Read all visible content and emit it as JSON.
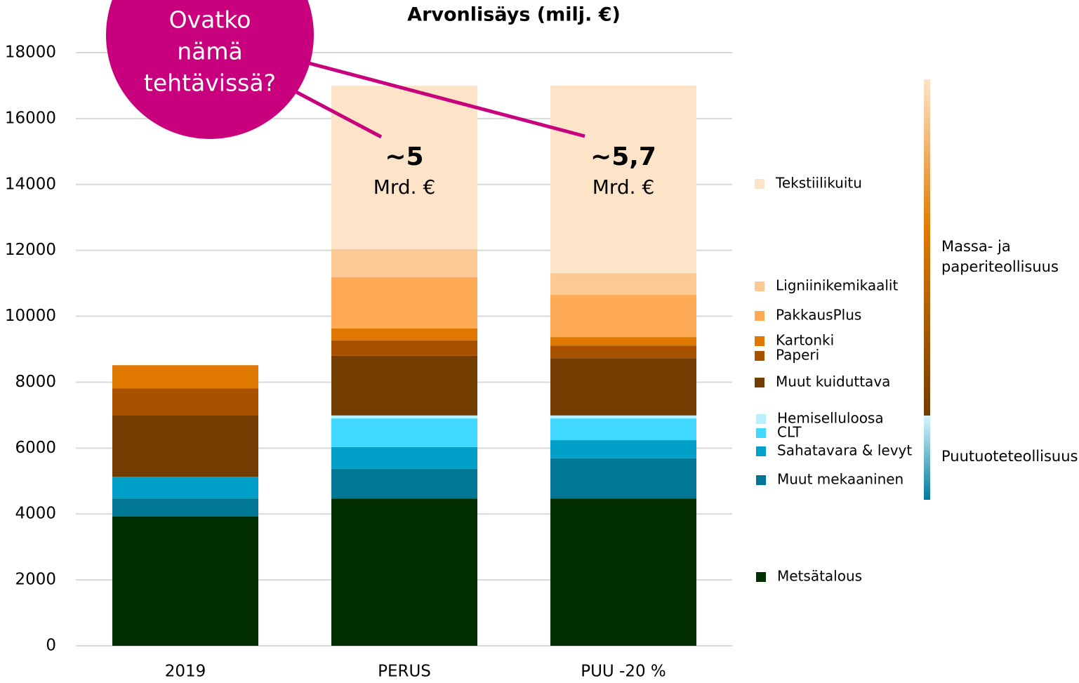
{
  "chart_data": {
    "type": "bar",
    "stacked": true,
    "title": "Arvonlisäys (milj. €)",
    "categories": [
      "2019",
      "PERUS",
      "PUU -20 %"
    ],
    "ylim": [
      0,
      18000
    ],
    "yticks": [
      0,
      2000,
      4000,
      6000,
      8000,
      10000,
      12000,
      14000,
      16000,
      18000
    ],
    "grid": true,
    "series": [
      {
        "name": "Metsätalous",
        "color": "#033003",
        "values": [
          3920,
          4470,
          4470
        ]
      },
      {
        "name": "Muut mekaaninen",
        "color": "#007794",
        "values": [
          550,
          900,
          1220
        ]
      },
      {
        "name": "Sahatavara & levyt",
        "color": "#00a0c8",
        "values": [
          660,
          660,
          550
        ]
      },
      {
        "name": "CLT",
        "color": "#40d8ff",
        "values": [
          0,
          870,
          660
        ]
      },
      {
        "name": "Hemiselluloosa",
        "color": "#b8f0ff",
        "values": [
          0,
          90,
          90
        ]
      },
      {
        "name": "Muut kuiduttava",
        "color": "#733c00",
        "values": [
          1875,
          1810,
          1740
        ]
      },
      {
        "name": "Paperi",
        "color": "#a85200",
        "values": [
          810,
          470,
          380
        ]
      },
      {
        "name": "Kartonki",
        "color": "#e07800",
        "values": [
          700,
          360,
          260
        ]
      },
      {
        "name": "PakkausPlus",
        "color": "#ffaa55",
        "values": [
          0,
          1555,
          1280
        ]
      },
      {
        "name": "Ligniinikemikaalit",
        "color": "#fcc894",
        "values": [
          0,
          850,
          660
        ]
      },
      {
        "name": "Tekstiilikuitu",
        "color": "#fde3c8",
        "values": [
          0,
          4960,
          5690
        ]
      }
    ],
    "bar_annotations": [
      null,
      [
        "~5",
        "Mrd. €"
      ],
      [
        "~5,7",
        "Mrd. €"
      ]
    ],
    "callout": [
      "Ovatko",
      "nämä",
      "tehtävissä?"
    ],
    "groups": [
      [
        "Massa- ja",
        "paperiteollisuus"
      ],
      [
        "Puutuoteteollisuus"
      ]
    ]
  }
}
